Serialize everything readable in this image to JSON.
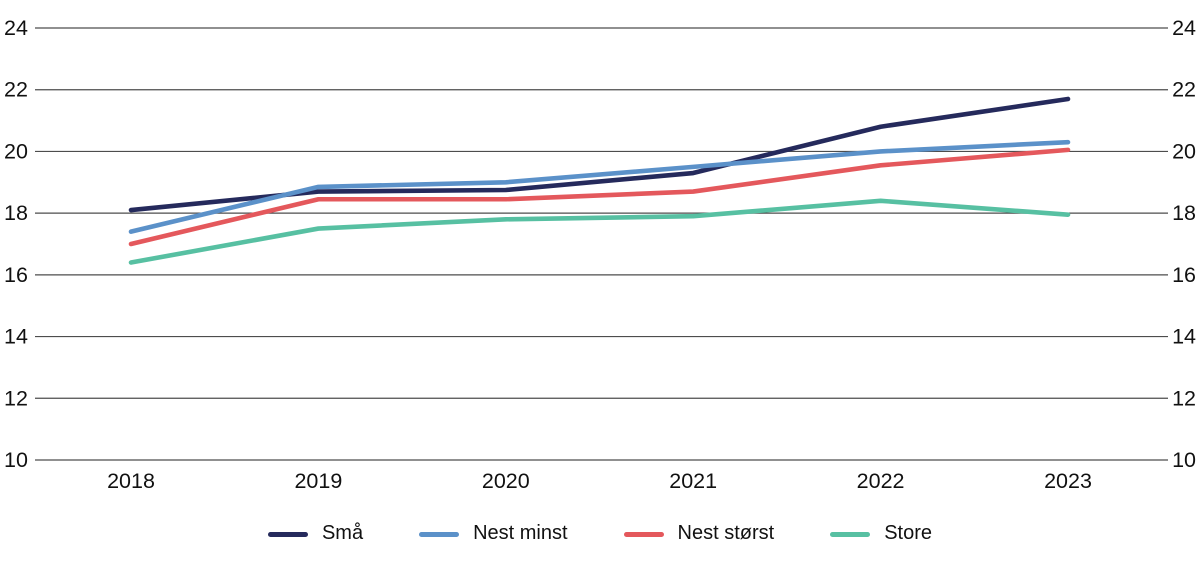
{
  "chart_data": {
    "type": "line",
    "x_labels": [
      "2018",
      "2019",
      "2020",
      "2021",
      "2022",
      "2023"
    ],
    "series": [
      {
        "name": "Små",
        "color": "#252a5c",
        "values": [
          18.1,
          18.7,
          18.75,
          19.3,
          20.8,
          21.7
        ]
      },
      {
        "name": "Nest minst",
        "color": "#5b91c9",
        "values": [
          17.4,
          18.85,
          19.0,
          19.5,
          20.0,
          20.3
        ]
      },
      {
        "name": "Nest størst",
        "color": "#e4585c",
        "values": [
          17.0,
          18.45,
          18.45,
          18.7,
          19.55,
          20.05
        ]
      },
      {
        "name": "Store",
        "color": "#57c0a2",
        "values": [
          16.4,
          17.5,
          17.8,
          17.9,
          18.4,
          17.95
        ]
      }
    ],
    "yticks": [
      24,
      22,
      20,
      18,
      16,
      14,
      12,
      10
    ],
    "ylim": [
      10,
      24
    ],
    "grid": true,
    "gridline_color": "#4d4d4d",
    "axis_label_sides": [
      "left",
      "right"
    ],
    "legend_position": "bottom",
    "title": "",
    "xlabel": "",
    "ylabel": ""
  }
}
